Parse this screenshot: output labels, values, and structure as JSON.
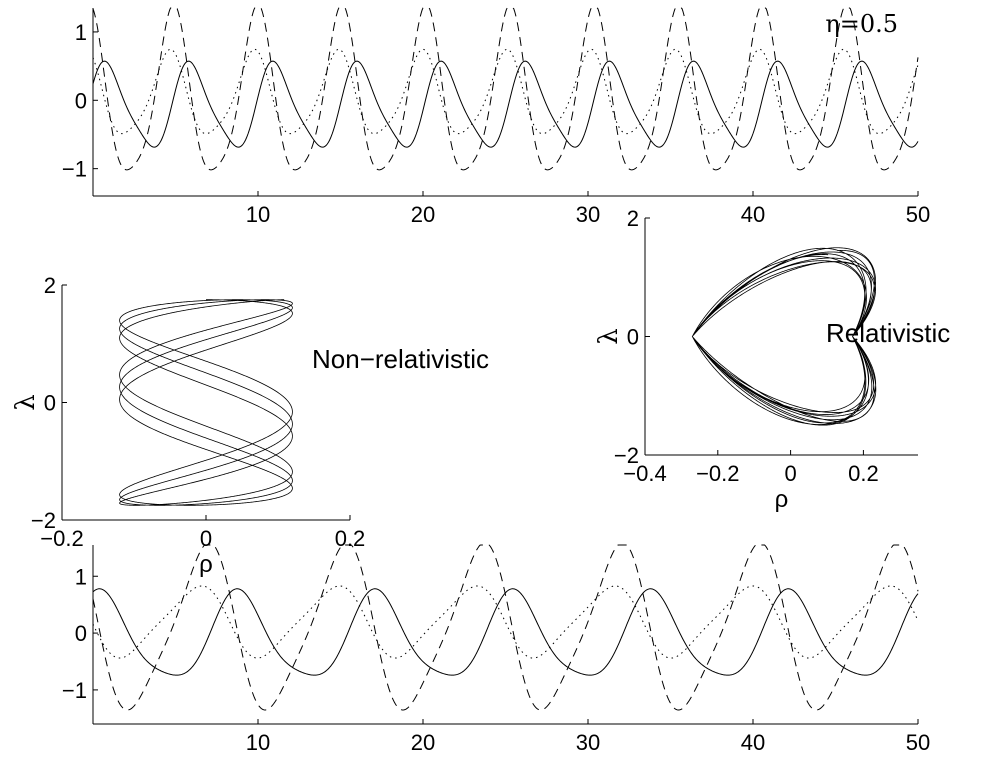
{
  "chart_data": [
    {
      "type": "line",
      "id": "top",
      "annotation": "η=0.5",
      "xlabel": "",
      "ylabel": "",
      "xlim": [
        0,
        50
      ],
      "ylim": [
        -1.4,
        1.35
      ],
      "xticks": [
        10,
        20,
        30,
        40,
        50
      ],
      "yticks": [
        -1,
        0,
        1
      ],
      "series": [
        {
          "style": "solid",
          "period": 5.1,
          "phase": 0.5,
          "amplitude": 0.6,
          "offset": -0.1,
          "samples_every": 0.5
        },
        {
          "style": "dashed",
          "period": 5.1,
          "phase": 1.9,
          "amplitude": 1.2,
          "offset": 0.0
        },
        {
          "style": "dotted",
          "period": 5.1,
          "phase": 2.2,
          "amplitude": 0.6,
          "offset": 0.05
        }
      ]
    },
    {
      "type": "line",
      "id": "phase-nonrel",
      "label": "Non−relativistic",
      "xlabel": "ρ",
      "ylabel": "λ",
      "xlim": [
        -0.2,
        0.2
      ],
      "ylim": [
        -2,
        2
      ],
      "xticks": [
        -0.2,
        0,
        0.2
      ],
      "yticks": [
        -2,
        0,
        2
      ],
      "curve": {
        "x_amplitude": 0.12,
        "y_amplitude": 1.75,
        "x_freq": 3,
        "y_freq": 1,
        "loops": 6
      }
    },
    {
      "type": "line",
      "id": "phase-rel",
      "label": "Relativistic",
      "xlabel": "ρ",
      "ylabel": "λ",
      "xlim": [
        -0.4,
        0.35
      ],
      "ylim": [
        -2,
        2
      ],
      "xticks": [
        -0.4,
        -0.2,
        0,
        0.2
      ],
      "yticks": [
        -2,
        0,
        2
      ],
      "curve": {
        "x_center": 0.0,
        "x_amplitude": 0.2,
        "y_amplitude": 1.5,
        "loops": 20
      }
    },
    {
      "type": "line",
      "id": "bottom",
      "xlabel": "",
      "ylabel": "",
      "xlim": [
        0,
        50
      ],
      "ylim": [
        -1.6,
        1.55
      ],
      "xticks": [
        10,
        20,
        30,
        40,
        50
      ],
      "yticks": [
        -1,
        0,
        1
      ],
      "series": [
        {
          "style": "solid",
          "period": 8.35,
          "phase": 1.2,
          "amplitude": 0.75,
          "offset": -0.1
        },
        {
          "style": "dashed",
          "period": 8.35,
          "phase": 2.8,
          "amplitude": 1.4,
          "offset": 0.05
        },
        {
          "style": "dotted",
          "period": 8.35,
          "phase": 3.2,
          "amplitude": 0.6,
          "offset": 0.2
        }
      ]
    }
  ]
}
